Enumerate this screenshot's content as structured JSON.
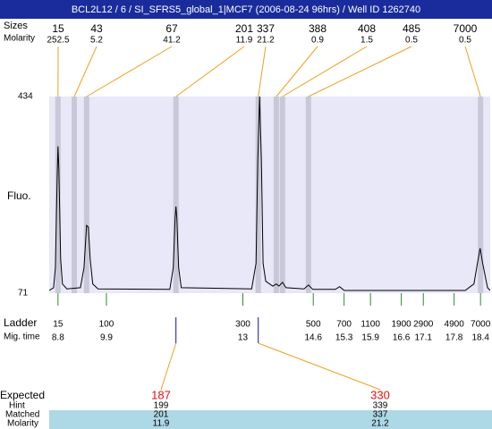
{
  "title": "BCL2L12 / 6 / SI_SFRS5_global_1|MCF7 (2006-08-24 96hrs) / Well ID 1262740",
  "peaks": {
    "row_labels": [
      "Sizes",
      "Molarity"
    ],
    "sizes": [
      15,
      43,
      67,
      201,
      337,
      388,
      408,
      485,
      7000
    ],
    "molarity": [
      252.5,
      5.2,
      41.2,
      11.9,
      21.2,
      0.9,
      1.5,
      0.5,
      0.5
    ],
    "times": [
      8.8,
      9.17,
      9.45,
      11.48,
      13.35,
      13.76,
      13.9,
      14.49,
      18.4
    ]
  },
  "chart_data": {
    "type": "line",
    "ylabel": "Fluo.",
    "color": "#000000",
    "x": [
      8.6,
      8.7,
      8.74,
      8.78,
      8.8,
      8.82,
      8.86,
      8.9,
      9.0,
      9.31,
      9.39,
      9.45,
      9.49,
      9.53,
      9.59,
      9.71,
      11.34,
      11.42,
      11.46,
      11.48,
      11.5,
      11.54,
      11.6,
      13.2,
      13.3,
      13.34,
      13.38,
      13.42,
      13.46,
      13.52,
      13.68,
      13.76,
      13.82,
      13.9,
      13.98,
      14.39,
      14.49,
      14.59,
      15.1,
      15.2,
      15.3,
      18.05,
      18.25,
      18.33,
      18.39,
      18.45,
      18.56,
      18.62
    ],
    "values": [
      76,
      81,
      118,
      284,
      342,
      301,
      134,
      88,
      79,
      81,
      118,
      196,
      193,
      134,
      88,
      79,
      78,
      118,
      209,
      231,
      209,
      118,
      81,
      79,
      126,
      317,
      434,
      317,
      126,
      93,
      84,
      88,
      84,
      91,
      81,
      79,
      86,
      78,
      78,
      83,
      76,
      76,
      88,
      126,
      154,
      126,
      81,
      76
    ],
    "xlim": [
      8.6,
      18.62
    ],
    "ylim": [
      71,
      434
    ],
    "yticks": [
      71,
      434
    ]
  },
  "ladder": {
    "label": "Ladder",
    "time_label": "Mig. time",
    "sizes": [
      15,
      100,
      300,
      500,
      700,
      1100,
      1900,
      2900,
      4900,
      7000
    ],
    "times": [
      8.8,
      9.9,
      13,
      14.6,
      15.3,
      15.9,
      16.6,
      17.1,
      17.8,
      18.4
    ]
  },
  "expected": {
    "row_labels": [
      "Expected",
      "Hint",
      "Matched",
      "Molarity"
    ],
    "sizes": [
      187,
      330
    ],
    "hint": [
      199,
      339
    ],
    "matched": [
      201,
      337
    ],
    "molarity": [
      11.9,
      21.2
    ]
  }
}
